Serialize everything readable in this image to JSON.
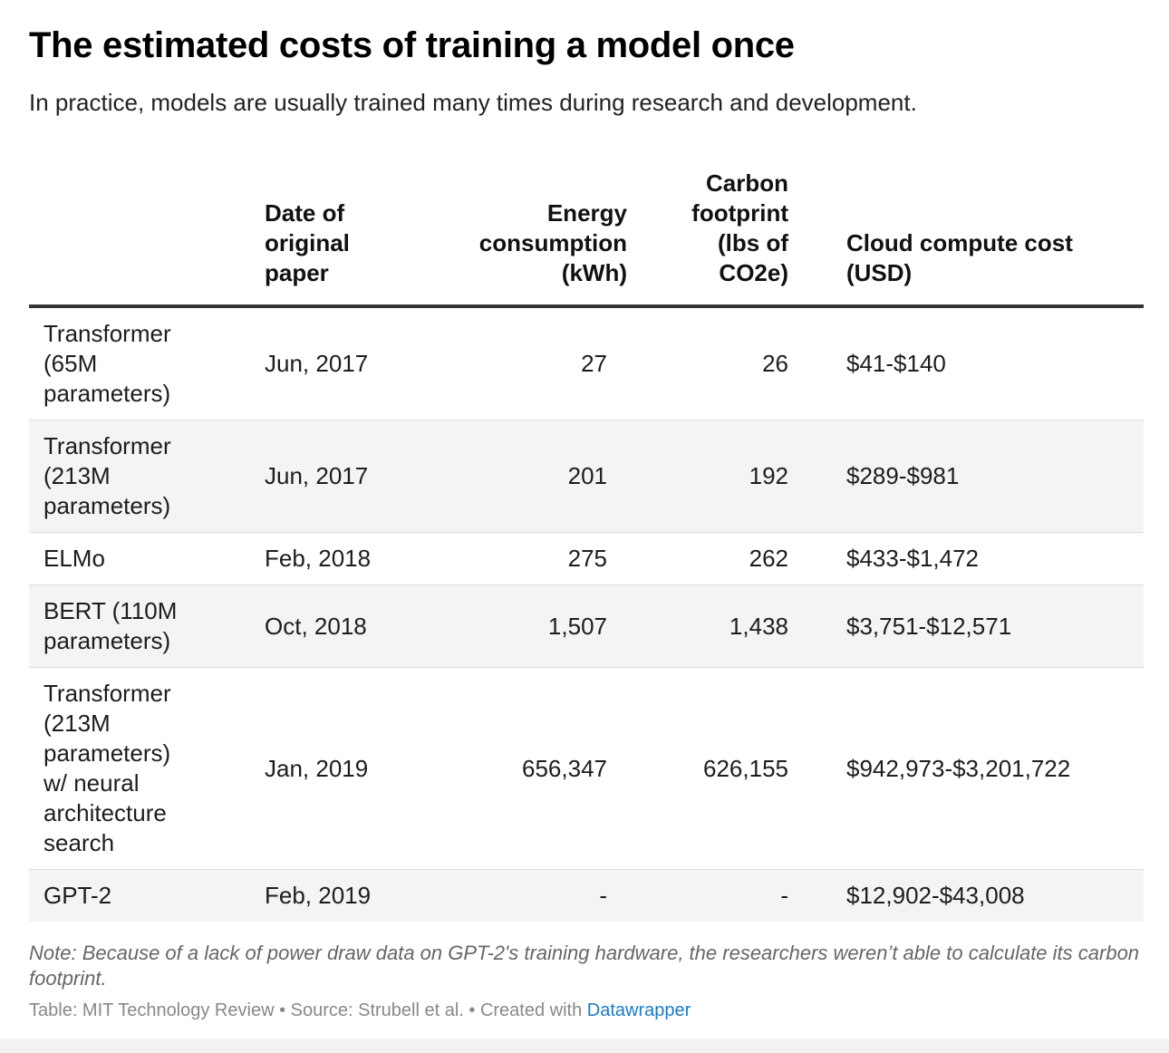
{
  "title": "The estimated costs of training a model once",
  "subtitle": "In practice, models are usually trained many times during research and development.",
  "chart_data": {
    "type": "table",
    "columns": [
      "",
      "Date of original paper",
      "Energy consumption (kWh)",
      "Carbon footprint (lbs of CO2e)",
      "Cloud compute cost (USD)"
    ],
    "rows": [
      [
        "Transformer (65M parameters)",
        "Jun, 2017",
        "27",
        "26",
        "$41-$140"
      ],
      [
        "Transformer (213M parameters)",
        "Jun, 2017",
        "201",
        "192",
        "$289-$981"
      ],
      [
        "ELMo",
        "Feb, 2018",
        "275",
        "262",
        "$433-$1,472"
      ],
      [
        "BERT (110M parameters)",
        "Oct, 2018",
        "1,507",
        "1,438",
        "$3,751-$12,571"
      ],
      [
        "Transformer (213M parameters) w/ neural architecture search",
        "Jan, 2019",
        "656,347",
        "626,155",
        "$942,973-$3,201,722"
      ],
      [
        "GPT-2",
        "Feb, 2019",
        "-",
        "-",
        "$12,902-$43,008"
      ]
    ]
  },
  "note": "Note: Because of a lack of power draw data on GPT-2's training hardware, the researchers weren’t able to calculate its carbon footprint.",
  "footer": {
    "text": "Table: MIT Technology Review • Source: Strubell et al. • Created with ",
    "link": "Datawrapper"
  },
  "colors": {
    "stripe": "#f4f4f4",
    "header_rule": "#333333",
    "link": "#1a7bc3",
    "note": "#666666"
  }
}
